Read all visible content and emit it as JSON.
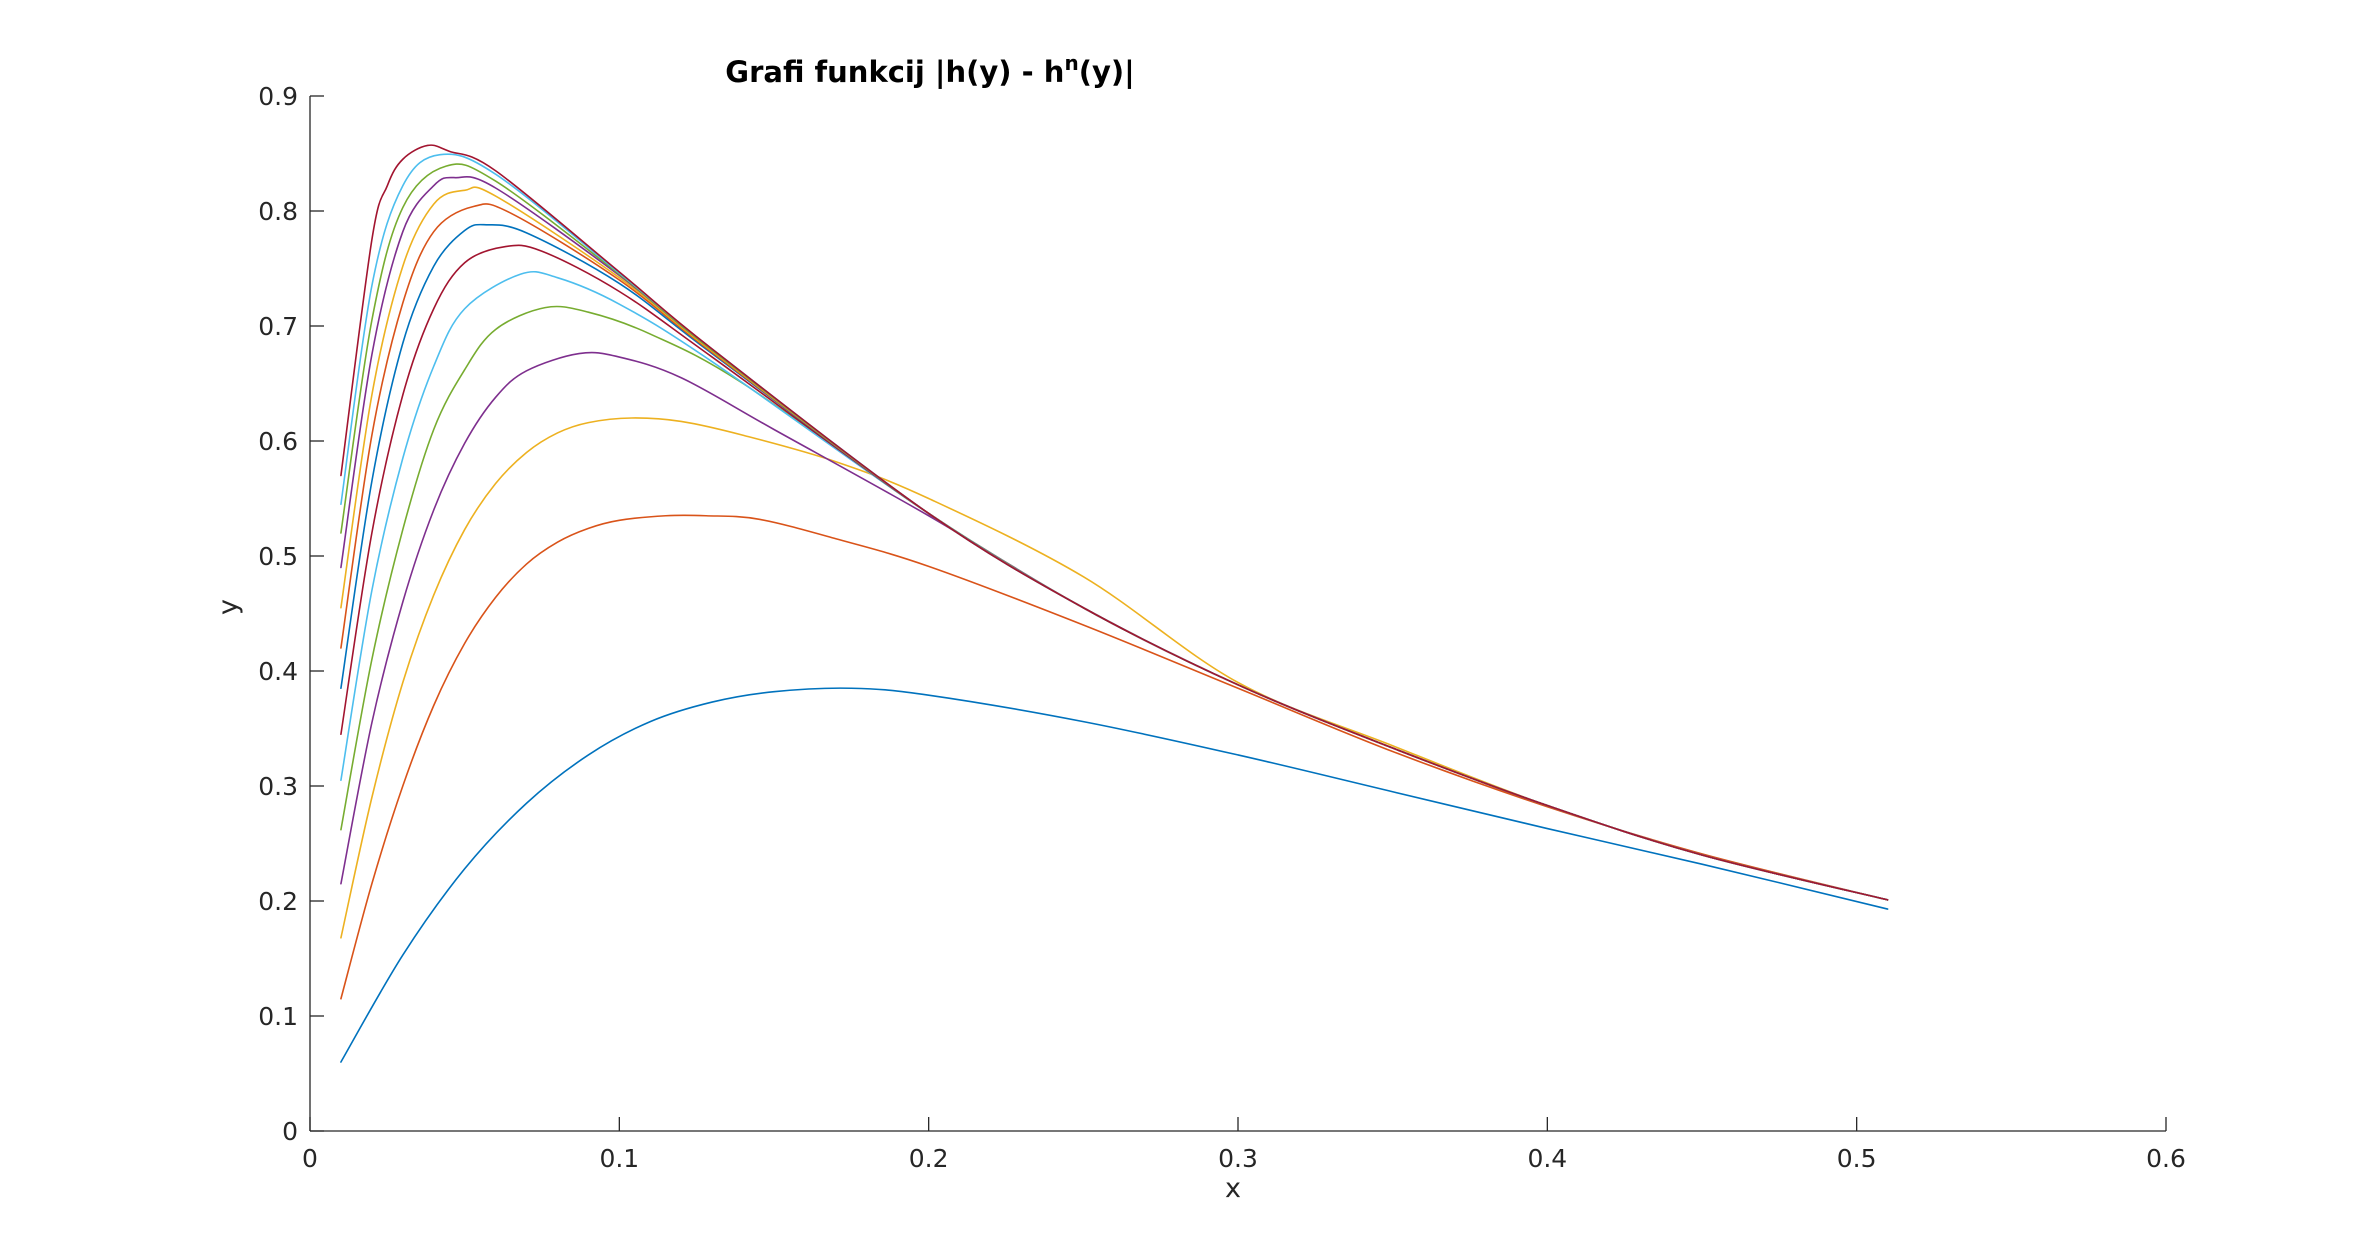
{
  "chart_data": {
    "type": "line",
    "title": "Grafi funkcij |h(y) - h",
    "title_superscript": "n",
    "title_suffix": "(y)|",
    "xlabel": "x",
    "ylabel": "y",
    "xlim": [
      0,
      0.6
    ],
    "ylim": [
      0,
      0.9
    ],
    "x_ticks": [
      0,
      0.1,
      0.2,
      0.3,
      0.4,
      0.5,
      0.6
    ],
    "x_tick_labels": [
      "0",
      "0.1",
      "0.2",
      "0.3",
      "0.4",
      "0.5",
      "0.6"
    ],
    "y_ticks": [
      0,
      0.1,
      0.2,
      0.3,
      0.4,
      0.5,
      0.6,
      0.7,
      0.8,
      0.9
    ],
    "y_tick_labels": [
      "0",
      "0.1",
      "0.2",
      "0.3",
      "0.4",
      "0.5",
      "0.6",
      "0.7",
      "0.8",
      "0.9"
    ],
    "grid": false,
    "legend": "none",
    "series": [
      {
        "color": "#0072BD",
        "x": [
          0.01,
          0.03,
          0.05,
          0.07,
          0.09,
          0.11,
          0.13,
          0.15,
          0.175,
          0.2,
          0.25,
          0.3,
          0.35,
          0.4,
          0.45,
          0.51
        ],
        "y": [
          0.06,
          0.153,
          0.228,
          0.285,
          0.327,
          0.356,
          0.373,
          0.382,
          0.385,
          0.379,
          0.356,
          0.327,
          0.295,
          0.263,
          0.232,
          0.193
        ]
      },
      {
        "color": "#D95319",
        "x": [
          0.01,
          0.02,
          0.03,
          0.04,
          0.05,
          0.06,
          0.07,
          0.08,
          0.09,
          0.1,
          0.115,
          0.128,
          0.145,
          0.17,
          0.2,
          0.25,
          0.3,
          0.35,
          0.4,
          0.45,
          0.51
        ],
        "y": [
          0.115,
          0.215,
          0.3,
          0.37,
          0.424,
          0.464,
          0.493,
          0.512,
          0.524,
          0.531,
          0.535,
          0.535,
          0.532,
          0.515,
          0.491,
          0.44,
          0.385,
          0.33,
          0.282,
          0.241,
          0.201
        ]
      },
      {
        "color": "#EDB120",
        "x": [
          0.01,
          0.02,
          0.03,
          0.04,
          0.05,
          0.06,
          0.07,
          0.08,
          0.09,
          0.104,
          0.12,
          0.14,
          0.17,
          0.2,
          0.25,
          0.3,
          0.35,
          0.4,
          0.45,
          0.51
        ],
        "y": [
          0.168,
          0.29,
          0.39,
          0.466,
          0.523,
          0.563,
          0.59,
          0.607,
          0.616,
          0.62,
          0.617,
          0.605,
          0.582,
          0.55,
          0.482,
          0.39,
          0.335,
          0.283,
          0.24,
          0.201
        ]
      },
      {
        "color": "#7E2F8E",
        "x": [
          0.01,
          0.02,
          0.03,
          0.04,
          0.05,
          0.06,
          0.07,
          0.087,
          0.1,
          0.12,
          0.15,
          0.2,
          0.25,
          0.3,
          0.35,
          0.4,
          0.45,
          0.51
        ],
        "y": [
          0.215,
          0.355,
          0.46,
          0.54,
          0.598,
          0.638,
          0.661,
          0.676,
          0.673,
          0.655,
          0.61,
          0.535,
          0.455,
          0.388,
          0.333,
          0.283,
          0.24,
          0.201
        ]
      },
      {
        "color": "#77AC30",
        "x": [
          0.01,
          0.02,
          0.03,
          0.04,
          0.05,
          0.06,
          0.076,
          0.09,
          0.11,
          0.14,
          0.2,
          0.25,
          0.3,
          0.35,
          0.4,
          0.45,
          0.51
        ],
        "y": [
          0.262,
          0.41,
          0.523,
          0.61,
          0.662,
          0.697,
          0.716,
          0.712,
          0.693,
          0.65,
          0.537,
          0.455,
          0.388,
          0.333,
          0.283,
          0.24,
          0.201
        ]
      },
      {
        "color": "#4DBEEE",
        "x": [
          0.01,
          0.02,
          0.03,
          0.04,
          0.05,
          0.068,
          0.08,
          0.1,
          0.13,
          0.2,
          0.25,
          0.3,
          0.35,
          0.4,
          0.45,
          0.51
        ],
        "y": [
          0.305,
          0.47,
          0.585,
          0.665,
          0.715,
          0.745,
          0.742,
          0.719,
          0.669,
          0.537,
          0.455,
          0.388,
          0.333,
          0.283,
          0.24,
          0.201
        ]
      },
      {
        "color": "#A2142F",
        "x": [
          0.01,
          0.02,
          0.03,
          0.04,
          0.05,
          0.063,
          0.075,
          0.1,
          0.13,
          0.2,
          0.25,
          0.3,
          0.35,
          0.4,
          0.45,
          0.51
        ],
        "y": [
          0.345,
          0.52,
          0.64,
          0.715,
          0.755,
          0.769,
          0.765,
          0.73,
          0.673,
          0.537,
          0.455,
          0.388,
          0.333,
          0.283,
          0.24,
          0.201
        ]
      },
      {
        "color": "#0072BD",
        "x": [
          0.01,
          0.02,
          0.03,
          0.04,
          0.05,
          0.057,
          0.07,
          0.1,
          0.13,
          0.2,
          0.25,
          0.3,
          0.35,
          0.4,
          0.45,
          0.51
        ],
        "y": [
          0.385,
          0.565,
          0.685,
          0.752,
          0.783,
          0.788,
          0.781,
          0.737,
          0.676,
          0.537,
          0.455,
          0.388,
          0.333,
          0.283,
          0.24,
          0.201
        ]
      },
      {
        "color": "#D95319",
        "x": [
          0.01,
          0.02,
          0.03,
          0.04,
          0.053,
          0.065,
          0.1,
          0.13,
          0.2,
          0.25,
          0.3,
          0.35,
          0.4,
          0.45,
          0.51
        ],
        "y": [
          0.42,
          0.605,
          0.72,
          0.782,
          0.804,
          0.798,
          0.74,
          0.677,
          0.537,
          0.455,
          0.388,
          0.333,
          0.283,
          0.24,
          0.201
        ]
      },
      {
        "color": "#EDB120",
        "x": [
          0.01,
          0.02,
          0.03,
          0.04,
          0.05,
          0.06,
          0.1,
          0.13,
          0.2,
          0.25,
          0.3,
          0.35,
          0.4,
          0.45,
          0.51
        ],
        "y": [
          0.455,
          0.64,
          0.752,
          0.806,
          0.818,
          0.813,
          0.742,
          0.678,
          0.537,
          0.455,
          0.388,
          0.333,
          0.283,
          0.24,
          0.201
        ]
      },
      {
        "color": "#7E2F8E",
        "x": [
          0.01,
          0.02,
          0.03,
          0.04,
          0.047,
          0.06,
          0.1,
          0.13,
          0.2,
          0.25,
          0.3,
          0.35,
          0.4,
          0.45,
          0.51
        ],
        "y": [
          0.49,
          0.675,
          0.782,
          0.822,
          0.829,
          0.82,
          0.744,
          0.679,
          0.537,
          0.455,
          0.388,
          0.333,
          0.283,
          0.24,
          0.201
        ]
      },
      {
        "color": "#77AC30",
        "x": [
          0.01,
          0.02,
          0.03,
          0.044,
          0.06,
          0.1,
          0.13,
          0.2,
          0.25,
          0.3,
          0.35,
          0.4,
          0.45,
          0.51
        ],
        "y": [
          0.52,
          0.705,
          0.803,
          0.839,
          0.826,
          0.745,
          0.679,
          0.537,
          0.455,
          0.388,
          0.333,
          0.283,
          0.24,
          0.201
        ]
      },
      {
        "color": "#4DBEEE",
        "x": [
          0.01,
          0.02,
          0.03,
          0.042,
          0.06,
          0.1,
          0.13,
          0.2,
          0.25,
          0.3,
          0.35,
          0.4,
          0.45,
          0.51
        ],
        "y": [
          0.545,
          0.735,
          0.822,
          0.849,
          0.832,
          0.746,
          0.68,
          0.537,
          0.455,
          0.388,
          0.333,
          0.283,
          0.24,
          0.201
        ]
      },
      {
        "color": "#A2142F",
        "x": [
          0.01,
          0.02,
          0.025,
          0.03,
          0.038,
          0.045,
          0.06,
          0.1,
          0.13,
          0.2,
          0.25,
          0.3,
          0.35,
          0.4,
          0.45,
          0.51
        ],
        "y": [
          0.57,
          0.775,
          0.822,
          0.845,
          0.857,
          0.852,
          0.835,
          0.747,
          0.68,
          0.537,
          0.455,
          0.388,
          0.333,
          0.283,
          0.24,
          0.201
        ]
      }
    ]
  }
}
